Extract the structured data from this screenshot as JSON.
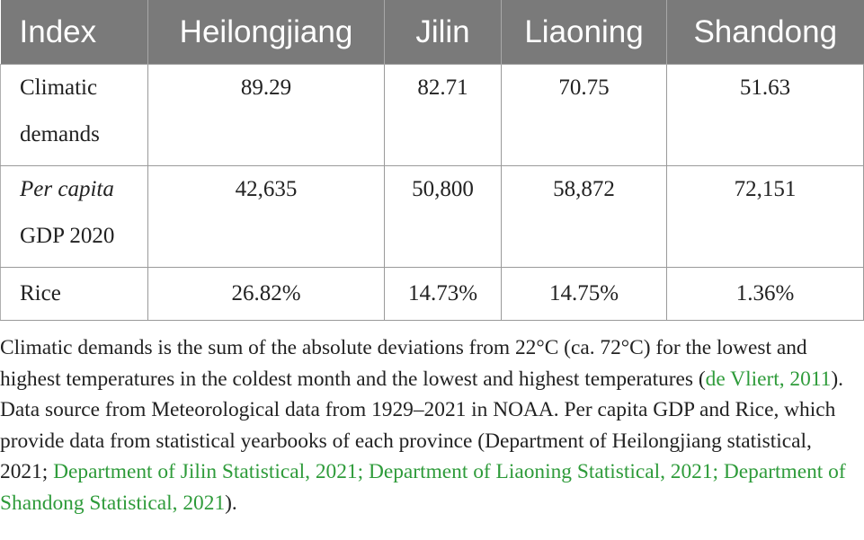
{
  "table": {
    "header": [
      "Index",
      "Heilongjiang",
      "Jilin",
      "Liaoning",
      "Shandong"
    ],
    "rows": [
      {
        "label_line1": "Climatic",
        "label_line2": "demands",
        "label_italic_part": "",
        "values": [
          "89.29",
          "82.71",
          "70.75",
          "51.63"
        ]
      },
      {
        "label_line1": "Per capita",
        "label_line2": "GDP 2020",
        "label_italic_part": "Per capita",
        "values": [
          "42,635",
          "50,800",
          "58,872",
          "72,151"
        ]
      },
      {
        "label_line1": "Rice",
        "label_line2": "",
        "label_italic_part": "",
        "values": [
          "26.82%",
          "14.73%",
          "14.75%",
          "1.36%"
        ]
      }
    ]
  },
  "footnote": {
    "text1": "Climatic demands is the sum of the absolute deviations from 22°C (ca. 72°C) for the lowest and highest temperatures in the coldest month and the lowest and highest temperatures (",
    "ref1": "de Vliert, 2011",
    "text2": "). Data source from Meteorological data from 1929–2021 in NOAA. Per capita GDP and Rice, which provide data from statistical yearbooks of each province (Department of Heilongjiang statistical, 2021; ",
    "ref2": "Department of Jilin Statistical, 2021; Department of Liaoning Statistical, 2021; Department of Shandong Statistical, 2021",
    "text3": ")."
  },
  "colors": {
    "header_bg": "#7a7a7a",
    "header_text": "#ffffff",
    "link": "#2e9b3a"
  }
}
